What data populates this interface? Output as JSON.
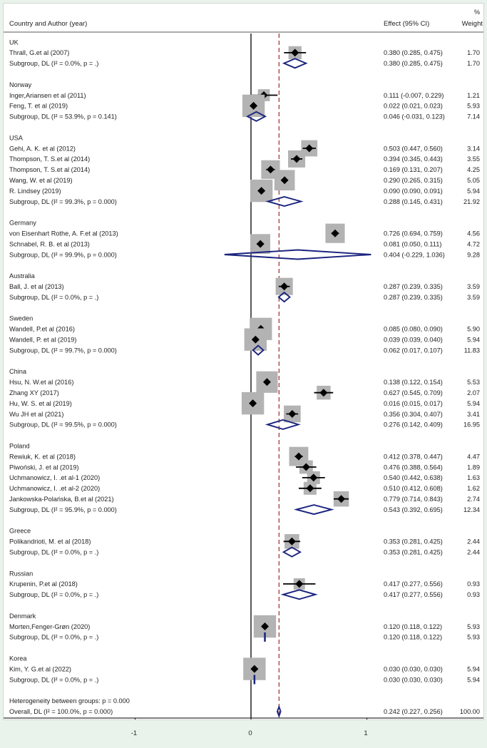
{
  "chart_data": {
    "type": "forest",
    "header": {
      "study": "Country and Author (year)",
      "effect": "Effect (95% CI)",
      "weight_top": "%",
      "weight": "Weight"
    },
    "xlim": [
      -1.3,
      1.2
    ],
    "xticks": [
      {
        "v": -1,
        "label": "-1"
      },
      {
        "v": 0,
        "label": "0"
      },
      {
        "v": 1,
        "label": "1"
      }
    ],
    "null_line": 0,
    "overall_line": 0.242,
    "rows": [
      {
        "kind": "group",
        "label": "UK"
      },
      {
        "kind": "study",
        "label": "Thrall, G.et al (2007)",
        "est": 0.38,
        "lo": 0.285,
        "hi": 0.475,
        "ci": "0.380 (0.285, 0.475)",
        "weight": 1.7,
        "wlabel": "1.70"
      },
      {
        "kind": "subtotal",
        "label": "Subgroup, DL (I² = 0.0%, p = .)",
        "est": 0.38,
        "lo": 0.285,
        "hi": 0.475,
        "ci": "0.380 (0.285, 0.475)",
        "wlabel": "1.70"
      },
      {
        "kind": "blank"
      },
      {
        "kind": "group",
        "label": "Norway"
      },
      {
        "kind": "study",
        "label": "Inger,Ariansen et al (2011)",
        "est": 0.111,
        "lo": -0.007,
        "hi": 0.229,
        "ci": "0.111 (-0.007, 0.229)",
        "weight": 1.21,
        "wlabel": "1.21"
      },
      {
        "kind": "study",
        "label": "Feng, T. et al (2019)",
        "est": 0.022,
        "lo": 0.021,
        "hi": 0.023,
        "ci": "0.022 (0.021, 0.023)",
        "weight": 5.93,
        "wlabel": "5.93"
      },
      {
        "kind": "subtotal",
        "label": "Subgroup, DL (I² = 53.9%, p = 0.141)",
        "est": 0.046,
        "lo": -0.031,
        "hi": 0.123,
        "ci": "0.046 (-0.031, 0.123)",
        "wlabel": "7.14"
      },
      {
        "kind": "blank"
      },
      {
        "kind": "group",
        "label": "USA"
      },
      {
        "kind": "study",
        "label": "Gehi, A. K. et al (2012)",
        "est": 0.503,
        "lo": 0.447,
        "hi": 0.56,
        "ci": "0.503 (0.447, 0.560)",
        "weight": 3.14,
        "wlabel": "3.14"
      },
      {
        "kind": "study",
        "label": "Thompson, T. S.et al (2014)",
        "est": 0.394,
        "lo": 0.345,
        "hi": 0.443,
        "ci": "0.394 (0.345, 0.443)",
        "weight": 3.55,
        "wlabel": "3.55"
      },
      {
        "kind": "study",
        "label": "Thompson, T. S.et al (2014)",
        "est": 0.169,
        "lo": 0.131,
        "hi": 0.207,
        "ci": "0.169 (0.131, 0.207)",
        "weight": 4.25,
        "wlabel": "4.25"
      },
      {
        "kind": "study",
        "label": "Wang, W. et al (2019)",
        "est": 0.29,
        "lo": 0.265,
        "hi": 0.315,
        "ci": "0.290 (0.265, 0.315)",
        "weight": 5.05,
        "wlabel": "5.05"
      },
      {
        "kind": "study",
        "label": "R. Lindsey (2019)",
        "est": 0.09,
        "lo": 0.09,
        "hi": 0.091,
        "ci": "0.090 (0.090, 0.091)",
        "weight": 5.94,
        "wlabel": "5.94"
      },
      {
        "kind": "subtotal",
        "label": "Subgroup, DL (I² = 99.3%, p = 0.000)",
        "est": 0.288,
        "lo": 0.145,
        "hi": 0.431,
        "ci": "0.288 (0.145, 0.431)",
        "wlabel": "21.92"
      },
      {
        "kind": "blank"
      },
      {
        "kind": "group",
        "label": "Germany"
      },
      {
        "kind": "study",
        "label": "von Eisenhart Rothe, A. F.et al (2013)",
        "est": 0.726,
        "lo": 0.694,
        "hi": 0.759,
        "ci": "0.726 (0.694, 0.759)",
        "weight": 4.56,
        "wlabel": "4.56"
      },
      {
        "kind": "study",
        "label": "Schnabel, R. B. et al (2013)",
        "est": 0.081,
        "lo": 0.05,
        "hi": 0.111,
        "ci": "0.081 (0.050, 0.111)",
        "weight": 4.72,
        "wlabel": "4.72"
      },
      {
        "kind": "subtotal",
        "label": "Subgroup, DL (I² = 99.9%, p = 0.000)",
        "est": 0.404,
        "lo": -0.229,
        "hi": 1.036,
        "ci": "0.404 (-0.229, 1.036)",
        "wlabel": "9.28"
      },
      {
        "kind": "blank"
      },
      {
        "kind": "group",
        "label": "Australia"
      },
      {
        "kind": "study",
        "label": "Ball, J.  et al (2013)",
        "est": 0.287,
        "lo": 0.239,
        "hi": 0.335,
        "ci": "0.287 (0.239, 0.335)",
        "weight": 3.59,
        "wlabel": "3.59"
      },
      {
        "kind": "subtotal",
        "label": "Subgroup, DL (I² = 0.0%, p = .)",
        "est": 0.287,
        "lo": 0.239,
        "hi": 0.335,
        "ci": "0.287 (0.239, 0.335)",
        "wlabel": "3.59"
      },
      {
        "kind": "blank"
      },
      {
        "kind": "group",
        "label": "Sweden"
      },
      {
        "kind": "study",
        "label": "Wandell, P.et al (2016)",
        "est": 0.085,
        "lo": 0.08,
        "hi": 0.09,
        "ci": "0.085 (0.080, 0.090)",
        "weight": 5.9,
        "wlabel": "5.90"
      },
      {
        "kind": "study",
        "label": "Wandell, P. et al (2019)",
        "est": 0.039,
        "lo": 0.039,
        "hi": 0.04,
        "ci": "0.039 (0.039, 0.040)",
        "weight": 5.94,
        "wlabel": "5.94"
      },
      {
        "kind": "subtotal",
        "label": "Subgroup, DL (I² = 99.7%, p = 0.000)",
        "est": 0.062,
        "lo": 0.017,
        "hi": 0.107,
        "ci": "0.062 (0.017, 0.107)",
        "wlabel": "11.83"
      },
      {
        "kind": "blank"
      },
      {
        "kind": "group",
        "label": "China"
      },
      {
        "kind": "study",
        "label": "Hsu, N. W.et al (2016)",
        "est": 0.138,
        "lo": 0.122,
        "hi": 0.154,
        "ci": "0.138 (0.122, 0.154)",
        "weight": 5.53,
        "wlabel": "5.53"
      },
      {
        "kind": "study",
        "label": "Zhang XY (2017)",
        "est": 0.627,
        "lo": 0.545,
        "hi": 0.709,
        "ci": "0.627 (0.545, 0.709)",
        "weight": 2.07,
        "wlabel": "2.07"
      },
      {
        "kind": "study",
        "label": "Hu, W. S. et al (2019)",
        "est": 0.016,
        "lo": 0.015,
        "hi": 0.017,
        "ci": "0.016 (0.015, 0.017)",
        "weight": 5.94,
        "wlabel": "5.94"
      },
      {
        "kind": "study",
        "label": "Wu JH  et al (2021)",
        "est": 0.356,
        "lo": 0.304,
        "hi": 0.407,
        "ci": "0.356 (0.304, 0.407)",
        "weight": 3.41,
        "wlabel": "3.41"
      },
      {
        "kind": "subtotal",
        "label": "Subgroup, DL (I² = 99.5%, p = 0.000)",
        "est": 0.276,
        "lo": 0.142,
        "hi": 0.409,
        "ci": "0.276 (0.142, 0.409)",
        "wlabel": "16.95"
      },
      {
        "kind": "blank"
      },
      {
        "kind": "group",
        "label": "Poland"
      },
      {
        "kind": "study",
        "label": "Rewiuk, K. et al  (2018)",
        "est": 0.412,
        "lo": 0.378,
        "hi": 0.447,
        "ci": "0.412 (0.378, 0.447)",
        "weight": 4.47,
        "wlabel": "4.47"
      },
      {
        "kind": "study",
        "label": "Piwoński, J.  et al (2019)",
        "est": 0.476,
        "lo": 0.388,
        "hi": 0.564,
        "ci": "0.476 (0.388, 0.564)",
        "weight": 1.89,
        "wlabel": "1.89"
      },
      {
        "kind": "study",
        "label": "Uchmanowicz, I. .et al-1 (2020)",
        "est": 0.54,
        "lo": 0.442,
        "hi": 0.638,
        "ci": "0.540 (0.442, 0.638)",
        "weight": 1.63,
        "wlabel": "1.63"
      },
      {
        "kind": "study",
        "label": "Uchmanowicz, I. .et al-2 (2020)",
        "est": 0.51,
        "lo": 0.412,
        "hi": 0.608,
        "ci": "0.510 (0.412, 0.608)",
        "weight": 1.62,
        "wlabel": "1.62"
      },
      {
        "kind": "study",
        "label": "Jankowska-Polańska, B.et al (2021)",
        "est": 0.779,
        "lo": 0.714,
        "hi": 0.843,
        "ci": "0.779 (0.714, 0.843)",
        "weight": 2.74,
        "wlabel": "2.74"
      },
      {
        "kind": "subtotal",
        "label": "Subgroup, DL (I² = 95.9%, p = 0.000)",
        "est": 0.543,
        "lo": 0.392,
        "hi": 0.695,
        "ci": "0.543 (0.392, 0.695)",
        "wlabel": "12.34"
      },
      {
        "kind": "blank"
      },
      {
        "kind": "group",
        "label": "Greece"
      },
      {
        "kind": "study",
        "label": "Polikandrioti, M. et al (2018)",
        "est": 0.353,
        "lo": 0.281,
        "hi": 0.425,
        "ci": "0.353 (0.281, 0.425)",
        "weight": 2.44,
        "wlabel": "2.44"
      },
      {
        "kind": "subtotal",
        "label": "Subgroup, DL (I² = 0.0%, p = .)",
        "est": 0.353,
        "lo": 0.281,
        "hi": 0.425,
        "ci": "0.353 (0.281, 0.425)",
        "wlabel": "2.44"
      },
      {
        "kind": "blank"
      },
      {
        "kind": "group",
        "label": "Russian"
      },
      {
        "kind": "study",
        "label": "Krupenin, P.et al (2018)",
        "est": 0.417,
        "lo": 0.277,
        "hi": 0.556,
        "ci": "0.417 (0.277, 0.556)",
        "weight": 0.93,
        "wlabel": "0.93"
      },
      {
        "kind": "subtotal",
        "label": "Subgroup, DL (I² = 0.0%, p = .)",
        "est": 0.417,
        "lo": 0.277,
        "hi": 0.556,
        "ci": "0.417 (0.277, 0.556)",
        "wlabel": "0.93"
      },
      {
        "kind": "blank"
      },
      {
        "kind": "group",
        "label": "Denmark"
      },
      {
        "kind": "study",
        "label": "Morten,Fenger-Grøn (2020)",
        "est": 0.12,
        "lo": 0.118,
        "hi": 0.122,
        "ci": "0.120 (0.118, 0.122)",
        "weight": 5.93,
        "wlabel": "5.93"
      },
      {
        "kind": "subtotal",
        "label": "Subgroup, DL (I² = 0.0%, p = .)",
        "est": 0.12,
        "lo": 0.118,
        "hi": 0.122,
        "ci": "0.120 (0.118, 0.122)",
        "wlabel": "5.93"
      },
      {
        "kind": "blank"
      },
      {
        "kind": "group",
        "label": "Korea"
      },
      {
        "kind": "study",
        "label": "Kim, Y. G.et al (2022)",
        "est": 0.03,
        "lo": 0.03,
        "hi": 0.03,
        "ci": "0.030 (0.030, 0.030)",
        "weight": 5.94,
        "wlabel": "5.94"
      },
      {
        "kind": "subtotal",
        "label": "Subgroup, DL (I² = 0.0%, p = .)",
        "est": 0.03,
        "lo": 0.03,
        "hi": 0.03,
        "ci": "0.030 (0.030, 0.030)",
        "wlabel": "5.94"
      },
      {
        "kind": "blank"
      },
      {
        "kind": "note",
        "label": "Heterogeneity between groups: p = 0.000"
      },
      {
        "kind": "overall",
        "label": "Overall, DL (I² = 100.0%, p = 0.000)",
        "est": 0.242,
        "lo": 0.227,
        "hi": 0.256,
        "ci": "0.242 (0.227, 0.256)",
        "wlabel": "100.00"
      }
    ],
    "colors": {
      "point": "#000000",
      "box": "#b3b3b3",
      "diamond": "#1a237e",
      "ref_line": "#9e2a2b",
      "axis": "#000000",
      "text": "#222222"
    }
  }
}
